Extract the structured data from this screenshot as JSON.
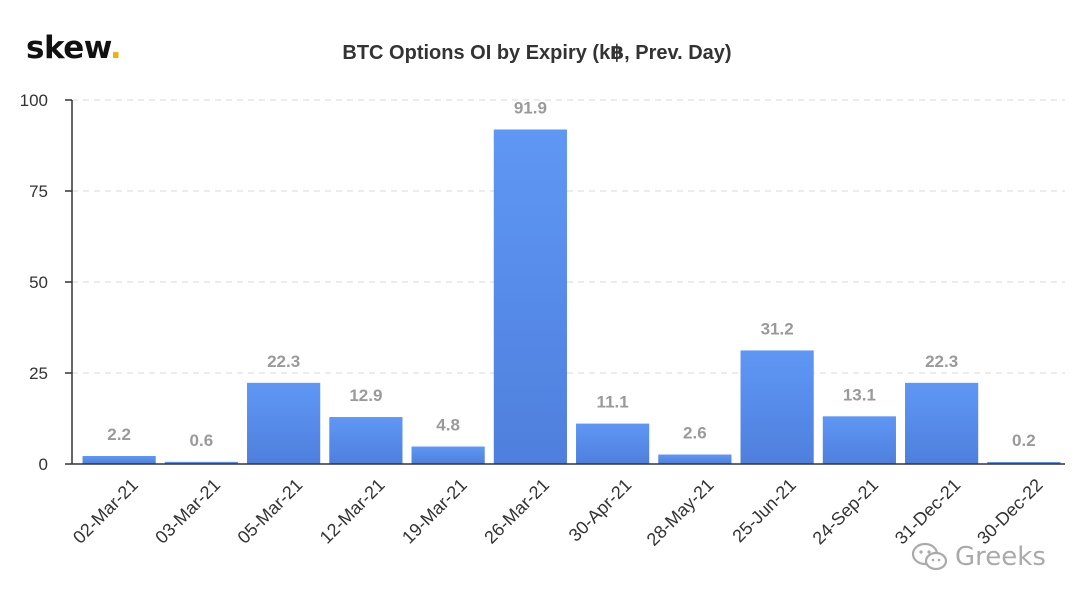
{
  "logo": {
    "text": "skew",
    "dot": "."
  },
  "watermark": {
    "text": "Greeks",
    "icon": "wechat-icon"
  },
  "colors": {
    "bar_top": "#5f97f5",
    "bar_bottom": "#4f7fdd",
    "label": "#9a9a9a",
    "grid": "#d9d9d9",
    "axis": "#333333"
  },
  "chart_data": {
    "type": "bar",
    "title": "BTC Options OI by Expiry (k฿, Prev. Day)",
    "xlabel": "",
    "ylabel": "",
    "categories": [
      "02-Mar-21",
      "03-Mar-21",
      "05-Mar-21",
      "12-Mar-21",
      "19-Mar-21",
      "26-Mar-21",
      "30-Apr-21",
      "28-May-21",
      "25-Jun-21",
      "24-Sep-21",
      "31-Dec-21",
      "30-Dec-22"
    ],
    "values": [
      2.2,
      0.6,
      22.3,
      12.9,
      4.8,
      91.9,
      11.1,
      2.6,
      31.2,
      13.1,
      22.3,
      0.2
    ],
    "data_labels": [
      "2.2",
      "0.6",
      "22.3",
      "12.9",
      "4.8",
      "91.9",
      "11.1",
      "2.6",
      "31.2",
      "13.1",
      "22.3",
      "0.2"
    ],
    "ylim": [
      0,
      100
    ],
    "yticks": [
      0,
      25,
      50,
      75,
      100
    ],
    "ytick_labels": [
      "0",
      "25",
      "50",
      "75",
      "100"
    ],
    "grid": "horizontal dashed",
    "legend": "none"
  }
}
